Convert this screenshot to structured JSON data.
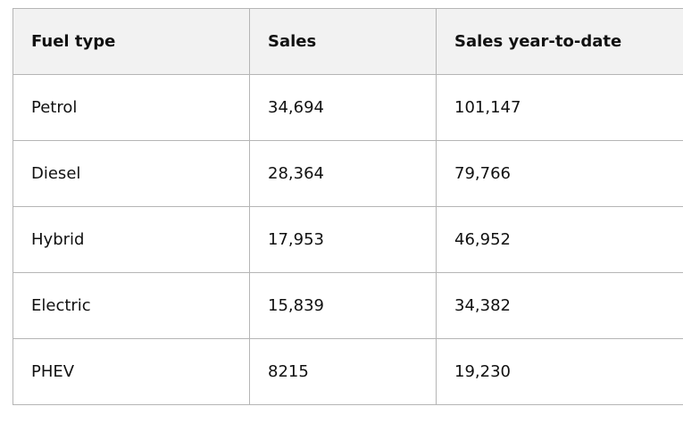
{
  "table": {
    "header": [
      "Fuel type",
      "Sales",
      "Sales year-to-date"
    ],
    "rows": [
      [
        "Petrol",
        "34,694",
        "101,147"
      ],
      [
        "Diesel",
        "28,364",
        "79,766"
      ],
      [
        "Hybrid",
        "17,953",
        "46,952"
      ],
      [
        "Electric",
        "15,839",
        "34,382"
      ],
      [
        "PHEV",
        "8215",
        "19,230"
      ]
    ]
  }
}
